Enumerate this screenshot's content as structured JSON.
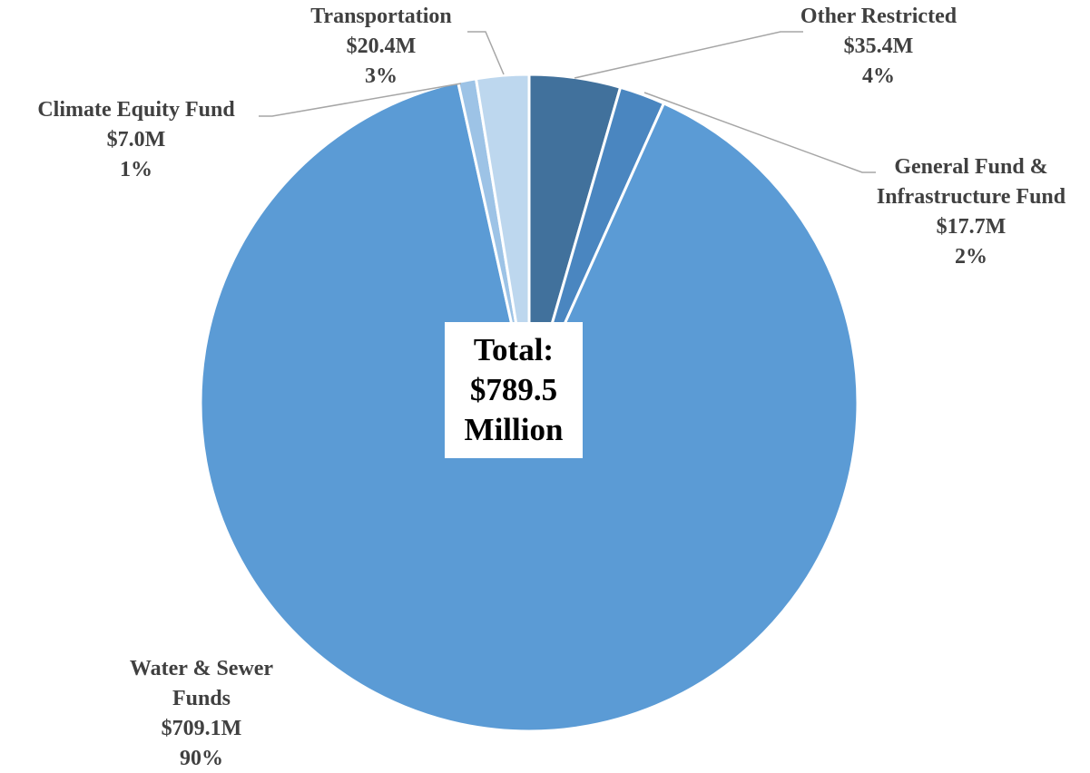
{
  "chart_data": {
    "type": "pie",
    "categories": [
      "Other Restricted",
      "General Fund & Infrastructure Fund",
      "Water & Sewer Funds",
      "Climate Equity Fund",
      "Transportation"
    ],
    "values": [
      35.4,
      17.7,
      709.1,
      7.0,
      20.4
    ],
    "value_labels": [
      "$35.4M",
      "$17.7M",
      "$709.1M",
      "$7.0M",
      "$20.4M"
    ],
    "percent_labels": [
      "4%",
      "2%",
      "90%",
      "1%",
      "3%"
    ],
    "colors": [
      "#41719c",
      "#4a86c0",
      "#5b9bd5",
      "#9dc3e6",
      "#bdd7ee"
    ],
    "center_label": "Total: $789.5 Million"
  }
}
